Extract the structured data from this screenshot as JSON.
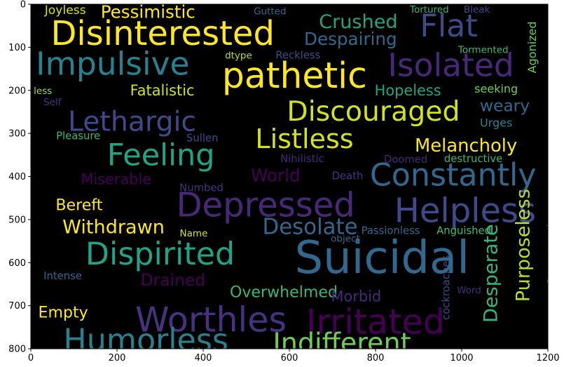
{
  "chart_data": {
    "type": "wordcloud",
    "colormap": "viridis",
    "background": "#000000",
    "xlim": [
      0,
      1200
    ],
    "ylim": [
      800,
      0
    ],
    "x_ticks": [
      0,
      200,
      400,
      600,
      800,
      1000,
      1200
    ],
    "y_ticks": [
      0,
      100,
      200,
      300,
      400,
      500,
      600,
      700,
      800
    ],
    "grid": false,
    "words": [
      {
        "text": "Joyless",
        "x": 80,
        "y": 15,
        "size": 28,
        "color": "#d2e21b",
        "vertical": false
      },
      {
        "text": "Pessimistic",
        "x": 272,
        "y": 20,
        "size": 40,
        "color": "#fde725",
        "vertical": false
      },
      {
        "text": "Gutted",
        "x": 555,
        "y": 17,
        "size": 22,
        "color": "#31688e",
        "vertical": false
      },
      {
        "text": "Tortured",
        "x": 925,
        "y": 13,
        "size": 22,
        "color": "#35b779",
        "vertical": false
      },
      {
        "text": "Bleak",
        "x": 1035,
        "y": 13,
        "size": 22,
        "color": "#3e4a89",
        "vertical": false
      },
      {
        "text": "Crushed",
        "x": 760,
        "y": 43,
        "size": 44,
        "color": "#20a486",
        "vertical": false
      },
      {
        "text": "Flat",
        "x": 970,
        "y": 55,
        "size": 72,
        "color": "#3e4a89",
        "vertical": false
      },
      {
        "text": "Disinterested",
        "x": 306,
        "y": 73,
        "size": 78,
        "color": "#fde725",
        "vertical": false
      },
      {
        "text": "Despairing",
        "x": 742,
        "y": 83,
        "size": 40,
        "color": "#31688e",
        "vertical": false
      },
      {
        "text": "Agonized",
        "x": 1165,
        "y": 100,
        "size": 26,
        "color": "#6ece58",
        "vertical": true
      },
      {
        "text": "Tormented",
        "x": 1050,
        "y": 107,
        "size": 22,
        "color": "#35b779",
        "vertical": false
      },
      {
        "text": "dtype",
        "x": 482,
        "y": 120,
        "size": 22,
        "color": "#b5de2b",
        "vertical": false
      },
      {
        "text": "Reckless",
        "x": 620,
        "y": 120,
        "size": 24,
        "color": "#3e4a89",
        "vertical": false
      },
      {
        "text": "Impulsive",
        "x": 190,
        "y": 143,
        "size": 74,
        "color": "#26828e",
        "vertical": false
      },
      {
        "text": "Isolated",
        "x": 975,
        "y": 147,
        "size": 74,
        "color": "#482878",
        "vertical": false
      },
      {
        "text": "pathetic",
        "x": 612,
        "y": 172,
        "size": 82,
        "color": "#fde725",
        "vertical": false
      },
      {
        "text": "less",
        "x": 28,
        "y": 202,
        "size": 22,
        "color": "#a0da39",
        "vertical": false
      },
      {
        "text": "Fatalistic",
        "x": 305,
        "y": 202,
        "size": 34,
        "color": "#d2e21b",
        "vertical": false
      },
      {
        "text": "Hopeless",
        "x": 875,
        "y": 202,
        "size": 34,
        "color": "#20a486",
        "vertical": false
      },
      {
        "text": "seeking",
        "x": 1080,
        "y": 198,
        "size": 26,
        "color": "#6ece58",
        "vertical": false
      },
      {
        "text": "Self",
        "x": 50,
        "y": 228,
        "size": 22,
        "color": "#46327e",
        "vertical": false
      },
      {
        "text": "weary",
        "x": 1100,
        "y": 238,
        "size": 38,
        "color": "#31688e",
        "vertical": false
      },
      {
        "text": "Discouraged",
        "x": 795,
        "y": 253,
        "size": 64,
        "color": "#d2e21b",
        "vertical": false
      },
      {
        "text": "Lethargic",
        "x": 235,
        "y": 277,
        "size": 64,
        "color": "#3e4a89",
        "vertical": false
      },
      {
        "text": "Urges",
        "x": 1080,
        "y": 277,
        "size": 26,
        "color": "#26828e",
        "vertical": false
      },
      {
        "text": "Pleasure",
        "x": 110,
        "y": 307,
        "size": 24,
        "color": "#35b779",
        "vertical": false
      },
      {
        "text": "Sullen",
        "x": 398,
        "y": 312,
        "size": 24,
        "color": "#3e4a89",
        "vertical": false
      },
      {
        "text": "Listless",
        "x": 635,
        "y": 317,
        "size": 62,
        "color": "#d2e21b",
        "vertical": false
      },
      {
        "text": "Melancholy",
        "x": 1010,
        "y": 330,
        "size": 42,
        "color": "#fde725",
        "vertical": false
      },
      {
        "text": "Feeling",
        "x": 302,
        "y": 355,
        "size": 70,
        "color": "#20a486",
        "vertical": false
      },
      {
        "text": "Nihilistic",
        "x": 630,
        "y": 360,
        "size": 24,
        "color": "#482878",
        "vertical": false
      },
      {
        "text": "Doomed",
        "x": 870,
        "y": 362,
        "size": 24,
        "color": "#482878",
        "vertical": false
      },
      {
        "text": "destructive",
        "x": 1027,
        "y": 360,
        "size": 24,
        "color": "#35b779",
        "vertical": false
      },
      {
        "text": "Constantly",
        "x": 980,
        "y": 402,
        "size": 72,
        "color": "#31688e",
        "vertical": false
      },
      {
        "text": "Miserable",
        "x": 198,
        "y": 408,
        "size": 34,
        "color": "#440154",
        "vertical": false
      },
      {
        "text": "World",
        "x": 568,
        "y": 400,
        "size": 40,
        "color": "#440154",
        "vertical": false
      },
      {
        "text": "Death",
        "x": 735,
        "y": 400,
        "size": 24,
        "color": "#46327e",
        "vertical": false
      },
      {
        "text": "Numbed",
        "x": 396,
        "y": 428,
        "size": 24,
        "color": "#46327e",
        "vertical": false
      },
      {
        "text": "Depressed",
        "x": 545,
        "y": 472,
        "size": 78,
        "color": "#482878",
        "vertical": false
      },
      {
        "text": "Bereft",
        "x": 112,
        "y": 468,
        "size": 36,
        "color": "#fde725",
        "vertical": false
      },
      {
        "text": "Helpless",
        "x": 1008,
        "y": 485,
        "size": 78,
        "color": "#3e4a89",
        "vertical": false
      },
      {
        "text": "Withdrawn",
        "x": 192,
        "y": 520,
        "size": 44,
        "color": "#fde725",
        "vertical": false
      },
      {
        "text": "Desolate",
        "x": 648,
        "y": 520,
        "size": 50,
        "color": "#31688e",
        "vertical": false
      },
      {
        "text": "Purposeless",
        "x": 1145,
        "y": 560,
        "size": 44,
        "color": "#b5de2b",
        "vertical": true
      },
      {
        "text": "Passionless",
        "x": 835,
        "y": 527,
        "size": 24,
        "color": "#31688e",
        "vertical": false
      },
      {
        "text": "Anguished",
        "x": 1005,
        "y": 527,
        "size": 24,
        "color": "#3dbc74",
        "vertical": false
      },
      {
        "text": "Devastated",
        "x": 1210,
        "y": 580,
        "size": 24,
        "color": "#20a486",
        "vertical": true
      },
      {
        "text": "Name",
        "x": 378,
        "y": 533,
        "size": 22,
        "color": "#d2e21b",
        "vertical": false
      },
      {
        "text": "object",
        "x": 730,
        "y": 545,
        "size": 22,
        "color": "#31688e",
        "vertical": false
      },
      {
        "text": "Desperate",
        "x": 1070,
        "y": 625,
        "size": 44,
        "color": "#35b779",
        "vertical": true
      },
      {
        "text": "cockroaches",
        "x": 965,
        "y": 658,
        "size": 24,
        "color": "#3e4a89",
        "vertical": true
      },
      {
        "text": "Dispirited",
        "x": 300,
        "y": 585,
        "size": 72,
        "color": "#20a486",
        "vertical": false
      },
      {
        "text": "Suicidal",
        "x": 815,
        "y": 595,
        "size": 104,
        "color": "#31688e",
        "vertical": false
      },
      {
        "text": "Intense",
        "x": 74,
        "y": 632,
        "size": 24,
        "color": "#31688e",
        "vertical": false
      },
      {
        "text": "Drained",
        "x": 330,
        "y": 643,
        "size": 38,
        "color": "#440154",
        "vertical": false
      },
      {
        "text": "Overwhelmed",
        "x": 587,
        "y": 670,
        "size": 36,
        "color": "#35b779",
        "vertical": false
      },
      {
        "text": "Morbid",
        "x": 755,
        "y": 680,
        "size": 34,
        "color": "#482878",
        "vertical": false
      },
      {
        "text": "Word",
        "x": 1017,
        "y": 665,
        "size": 22,
        "color": "#482878",
        "vertical": false
      },
      {
        "text": "Empty",
        "x": 75,
        "y": 717,
        "size": 36,
        "color": "#fde725",
        "vertical": false
      },
      {
        "text": "Worthles",
        "x": 418,
        "y": 738,
        "size": 80,
        "color": "#46327e",
        "vertical": false
      },
      {
        "text": "Irritated",
        "x": 800,
        "y": 743,
        "size": 80,
        "color": "#440154",
        "vertical": false
      },
      {
        "text": "Humorless",
        "x": 267,
        "y": 785,
        "size": 72,
        "color": "#26828e",
        "vertical": false
      },
      {
        "text": "Indifferent",
        "x": 722,
        "y": 790,
        "size": 62,
        "color": "#6ece58",
        "vertical": false
      }
    ]
  }
}
